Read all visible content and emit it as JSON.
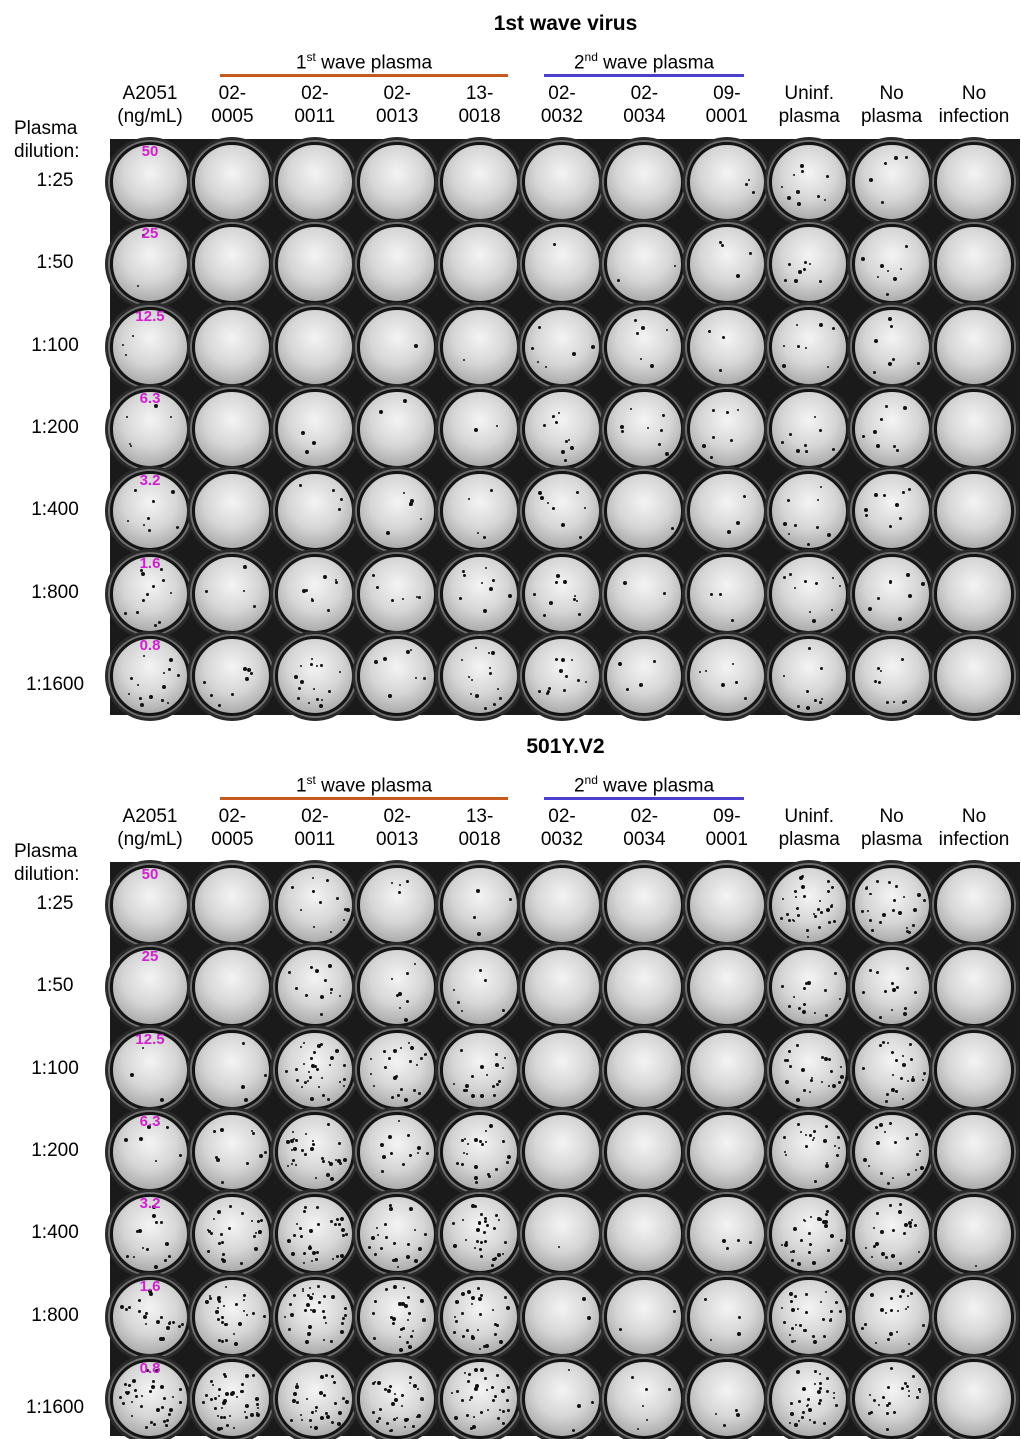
{
  "panels": [
    {
      "title": "1st wave virus",
      "group1": {
        "prefix": "1",
        "sup": "st",
        "suffix": " wave plasma",
        "color": "#c65a1e"
      },
      "group2": {
        "prefix": "2",
        "sup": "nd",
        "suffix": " wave plasma",
        "color": "#4b3fd0"
      },
      "plasma_label_1": "Plasma",
      "plasma_label_2": "dilution:",
      "columns": [
        {
          "line1": "A2051",
          "line2": "(ng/mL)"
        },
        {
          "line1": "02-",
          "line2": "0005"
        },
        {
          "line1": "02-",
          "line2": "0011"
        },
        {
          "line1": "02-",
          "line2": "0013"
        },
        {
          "line1": "13-",
          "line2": "0018"
        },
        {
          "line1": "02-",
          "line2": "0032"
        },
        {
          "line1": "02-",
          "line2": "0034"
        },
        {
          "line1": "09-",
          "line2": "0001"
        },
        {
          "line1": "Uninf.",
          "line2": "plasma"
        },
        {
          "line1": "No",
          "line2": "plasma"
        },
        {
          "line1": "No",
          "line2": "infection"
        }
      ],
      "rows": [
        "1:25",
        "1:50",
        "1:100",
        "1:200",
        "1:400",
        "1:800",
        "1:1600"
      ],
      "concentrations": [
        "50",
        "25",
        "12.5",
        "6.3",
        "3.2",
        "1.6",
        "0.8"
      ],
      "foci": [
        [
          0,
          0,
          0,
          0,
          0,
          0,
          0,
          3,
          10,
          6,
          0
        ],
        [
          2,
          0,
          0,
          0,
          0,
          1,
          2,
          4,
          8,
          8,
          0
        ],
        [
          3,
          0,
          0,
          1,
          1,
          6,
          6,
          3,
          8,
          7,
          0
        ],
        [
          5,
          0,
          3,
          2,
          2,
          10,
          8,
          7,
          9,
          8,
          0
        ],
        [
          8,
          0,
          4,
          6,
          4,
          8,
          1,
          3,
          9,
          9,
          0
        ],
        [
          12,
          4,
          8,
          6,
          9,
          10,
          2,
          3,
          10,
          8,
          0
        ],
        [
          14,
          8,
          16,
          7,
          14,
          12,
          4,
          6,
          9,
          9,
          0
        ]
      ]
    },
    {
      "title": "501Y.V2",
      "group1": {
        "prefix": "1",
        "sup": "st",
        "suffix": " wave plasma",
        "color": "#c65a1e"
      },
      "group2": {
        "prefix": "2",
        "sup": "nd",
        "suffix": " wave plasma",
        "color": "#4b3fd0"
      },
      "plasma_label_1": "Plasma",
      "plasma_label_2": "dilution:",
      "columns": [
        {
          "line1": "A2051",
          "line2": "(ng/mL)"
        },
        {
          "line1": "02-",
          "line2": "0005"
        },
        {
          "line1": "02-",
          "line2": "0011"
        },
        {
          "line1": "02-",
          "line2": "0013"
        },
        {
          "line1": "13-",
          "line2": "0018"
        },
        {
          "line1": "02-",
          "line2": "0032"
        },
        {
          "line1": "02-",
          "line2": "0034"
        },
        {
          "line1": "09-",
          "line2": "0001"
        },
        {
          "line1": "Uninf.",
          "line2": "plasma"
        },
        {
          "line1": "No",
          "line2": "plasma"
        },
        {
          "line1": "No",
          "line2": "infection"
        }
      ],
      "rows": [
        "1:25",
        "1:50",
        "1:100",
        "1:200",
        "1:400",
        "1:800",
        "1:1600"
      ],
      "concentrations": [
        "50",
        "25",
        "12.5",
        "6.3",
        "3.2",
        "1.6",
        "0.8"
      ],
      "foci": [
        [
          0,
          0,
          12,
          4,
          4,
          0,
          0,
          0,
          30,
          24,
          0
        ],
        [
          0,
          0,
          12,
          8,
          6,
          0,
          0,
          0,
          14,
          14,
          0
        ],
        [
          3,
          4,
          30,
          22,
          18,
          0,
          0,
          0,
          22,
          22,
          0
        ],
        [
          6,
          10,
          30,
          12,
          22,
          0,
          0,
          0,
          20,
          18,
          0
        ],
        [
          14,
          24,
          30,
          22,
          30,
          1,
          0,
          4,
          26,
          22,
          1
        ],
        [
          20,
          28,
          32,
          26,
          28,
          2,
          2,
          4,
          28,
          20,
          0
        ],
        [
          36,
          40,
          30,
          32,
          34,
          4,
          6,
          4,
          30,
          22,
          0
        ]
      ]
    }
  ]
}
